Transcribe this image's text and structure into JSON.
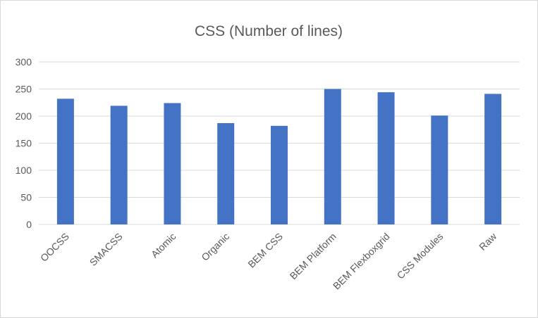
{
  "chart_data": {
    "type": "bar",
    "title": "CSS (Number of lines)",
    "xlabel": "",
    "ylabel": "",
    "categories": [
      "OOCSS",
      "SMACSS",
      "Atomic",
      "Organic",
      "BEM CSS",
      "BEM Platform",
      "BEM Flexboxgrid",
      "CSS Modules",
      "Raw"
    ],
    "values": [
      232,
      219,
      224,
      187,
      182,
      250,
      244,
      201,
      241
    ],
    "ylim": [
      0,
      300
    ],
    "yticks": [
      0,
      50,
      100,
      150,
      200,
      250,
      300
    ],
    "grid": true,
    "legend": "none",
    "bar_color": "#4472C4",
    "grid_color": "#d9d9d9",
    "text_color": "#595959"
  }
}
